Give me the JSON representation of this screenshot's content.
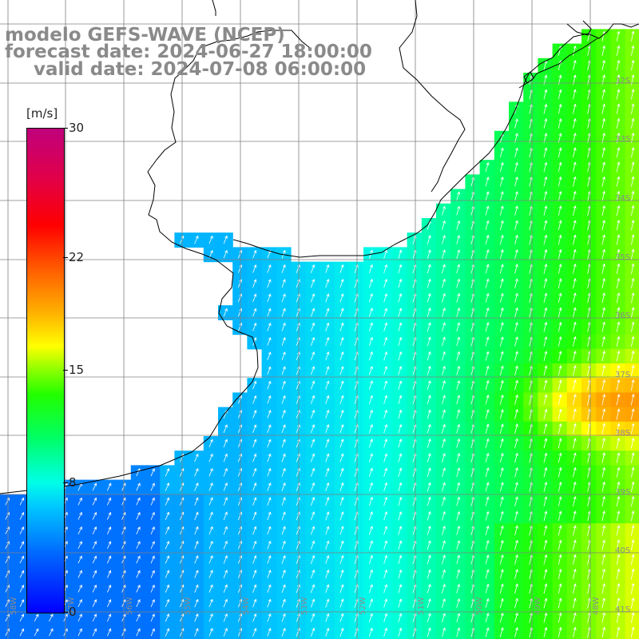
{
  "titles": {
    "model": "modelo GEFS-WAVE (NCEP)",
    "forecast": "forecast date: 2024-06-27 18:00:00",
    "valid": "valid date: 2024-07-08 06:00:00"
  },
  "colorbar": {
    "unit": "[m/s]",
    "min": 0,
    "max": 30,
    "ticks": [
      "30",
      "22",
      "15",
      "8",
      "0"
    ],
    "tick_values": [
      30,
      22,
      15,
      8,
      0
    ]
  },
  "grid": {
    "lat_labels": [
      "32S",
      "33S",
      "34S",
      "35S",
      "36S",
      "37S",
      "38S",
      "39S",
      "40S",
      "41S"
    ],
    "lon_labels": [
      "58W",
      "57W",
      "56W",
      "55W",
      "54W",
      "53W",
      "52W",
      "51W",
      "50W",
      "49W",
      "48W"
    ]
  },
  "colors": {
    "land": "#ffffff",
    "grid_lines": "#808080",
    "coastline": "#000000",
    "vectors": "#ffffff",
    "title_text": "#8a8a8a"
  }
}
